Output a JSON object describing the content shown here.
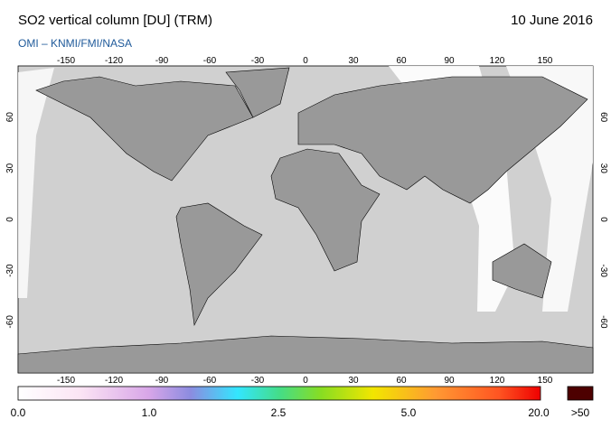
{
  "header": {
    "title": "SO2 vertical column [DU] (TRM)",
    "date": "10 June 2016",
    "subtitle": "OMI  –  KNMI/FMI/NASA"
  },
  "map": {
    "lon_labels": [
      "-150",
      "-120",
      "-90",
      "-60",
      "-30",
      "0",
      "30",
      "60",
      "90",
      "120",
      "150"
    ],
    "lat_labels": [
      "60",
      "30",
      "0",
      "-30",
      "-60"
    ]
  },
  "colorbar": {
    "labels": [
      "0.0",
      "1.0",
      "2.5",
      "5.0",
      "20.0"
    ],
    "overflow_label": ">50"
  }
}
